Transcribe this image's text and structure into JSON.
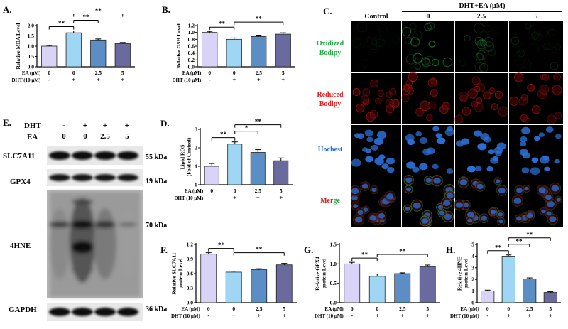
{
  "colors": {
    "bar_control": "#d9d4f7",
    "bar_dht": "#9fd6f3",
    "bar_ea25": "#5b8ec4",
    "bar_ea5": "#6b6a9e",
    "oxidized": "#22aa44",
    "reduced": "#e02020",
    "hoechst": "#2b6fd6",
    "merge_g": "#2a9a3a",
    "merge_r": "#d02020"
  },
  "conditions": {
    "ea_label": "EA (μM)",
    "dht_label": "DHT (10 μM)",
    "ea_values": [
      "0",
      "0",
      "2.5",
      "5"
    ],
    "dht_values": [
      "-",
      "+",
      "+",
      "+"
    ]
  },
  "charts": [
    {
      "id": "A",
      "letter": "A.",
      "ylabel": "Relative MDA Level",
      "yticks": [
        "0.0",
        "0.5",
        "1.0",
        "1.5",
        "2.0"
      ],
      "ylim": [
        0,
        2.0
      ],
      "values": [
        1.0,
        1.65,
        1.3,
        1.13
      ],
      "errors": [
        0.04,
        0.09,
        0.05,
        0.05
      ],
      "sig": [
        {
          "from": 0,
          "to": 1,
          "label": "**"
        },
        {
          "from": 1,
          "to": 2,
          "label": "**"
        },
        {
          "from": 1,
          "to": 3,
          "label": "**"
        }
      ]
    },
    {
      "id": "B",
      "letter": "B.",
      "ylabel": "Relative GSH Level",
      "yticks": [
        "0.0",
        "0.2",
        "0.4",
        "0.6",
        "0.8",
        "1.0",
        "1.2"
      ],
      "ylim": [
        0,
        1.2
      ],
      "values": [
        1.0,
        0.8,
        0.88,
        0.95
      ],
      "errors": [
        0.03,
        0.04,
        0.04,
        0.04
      ],
      "sig": [
        {
          "from": 0,
          "to": 1,
          "label": "**"
        },
        {
          "from": 1,
          "to": 3,
          "label": "**"
        }
      ]
    },
    {
      "id": "D",
      "letter": "D.",
      "ylabel": "Lipid ROS\n(Fold of Control)",
      "yticks": [
        "0",
        "1",
        "2",
        "3"
      ],
      "ylim": [
        0,
        3
      ],
      "values": [
        1.0,
        2.2,
        1.75,
        1.3
      ],
      "errors": [
        0.15,
        0.12,
        0.15,
        0.15
      ],
      "sig": [
        {
          "from": 0,
          "to": 1,
          "label": "**"
        },
        {
          "from": 1,
          "to": 2,
          "label": "*"
        },
        {
          "from": 1,
          "to": 3,
          "label": "**"
        }
      ]
    },
    {
      "id": "F",
      "letter": "F.",
      "ylabel": "Relative SLC7A11\nprotein Level",
      "yticks": [
        "0.0",
        "0.3",
        "0.6",
        "0.9",
        "1.2"
      ],
      "ylim": [
        0,
        1.2
      ],
      "values": [
        1.0,
        0.63,
        0.68,
        0.78
      ],
      "errors": [
        0.03,
        0.02,
        0.02,
        0.03
      ],
      "sig": [
        {
          "from": 0,
          "to": 1,
          "label": "**"
        },
        {
          "from": 1,
          "to": 3,
          "label": "**"
        }
      ]
    },
    {
      "id": "G",
      "letter": "G.",
      "ylabel": "Relative GPX4\nprotein Level",
      "yticks": [
        "0.0",
        "0.5",
        "1.0",
        "1.5"
      ],
      "ylim": [
        0,
        1.5
      ],
      "values": [
        1.0,
        0.68,
        0.75,
        0.93
      ],
      "errors": [
        0.04,
        0.06,
        0.02,
        0.04
      ],
      "sig": [
        {
          "from": 0,
          "to": 1,
          "label": "**"
        },
        {
          "from": 1,
          "to": 3,
          "label": "**"
        }
      ]
    },
    {
      "id": "H",
      "letter": "H.",
      "ylabel": "Relative 4HNE\nprotein Level",
      "yticks": [
        "0",
        "1",
        "2",
        "3",
        "4",
        "5"
      ],
      "ylim": [
        0,
        5
      ],
      "values": [
        1.0,
        4.0,
        2.05,
        0.88
      ],
      "errors": [
        0.08,
        0.1,
        0.08,
        0.06
      ],
      "sig": [
        {
          "from": 0,
          "to": 1,
          "label": "**"
        },
        {
          "from": 1,
          "to": 2,
          "label": "**"
        },
        {
          "from": 1,
          "to": 3,
          "label": "**"
        }
      ]
    }
  ],
  "chart_data": [
    {
      "type": "bar",
      "title": "",
      "ylabel": "Relative MDA Level",
      "categories": [
        "Control",
        "DHT",
        "DHT+EA 2.5",
        "DHT+EA 5"
      ],
      "values": [
        1.0,
        1.65,
        1.3,
        1.13
      ],
      "ylim": [
        0,
        2.0
      ]
    },
    {
      "type": "bar",
      "title": "",
      "ylabel": "Relative GSH Level",
      "categories": [
        "Control",
        "DHT",
        "DHT+EA 2.5",
        "DHT+EA 5"
      ],
      "values": [
        1.0,
        0.8,
        0.88,
        0.95
      ],
      "ylim": [
        0,
        1.2
      ]
    },
    {
      "type": "bar",
      "title": "",
      "ylabel": "Lipid ROS (Fold of Control)",
      "categories": [
        "Control",
        "DHT",
        "DHT+EA 2.5",
        "DHT+EA 5"
      ],
      "values": [
        1.0,
        2.2,
        1.75,
        1.3
      ],
      "ylim": [
        0,
        3
      ]
    },
    {
      "type": "bar",
      "title": "",
      "ylabel": "Relative SLC7A11 protein Level",
      "categories": [
        "Control",
        "DHT",
        "DHT+EA 2.5",
        "DHT+EA 5"
      ],
      "values": [
        1.0,
        0.63,
        0.68,
        0.78
      ],
      "ylim": [
        0,
        1.2
      ]
    },
    {
      "type": "bar",
      "title": "",
      "ylabel": "Relative GPX4 protein Level",
      "categories": [
        "Control",
        "DHT",
        "DHT+EA 2.5",
        "DHT+EA 5"
      ],
      "values": [
        1.0,
        0.68,
        0.75,
        0.93
      ],
      "ylim": [
        0,
        1.5
      ]
    },
    {
      "type": "bar",
      "title": "",
      "ylabel": "Relative 4HNE protein Level",
      "categories": [
        "Control",
        "DHT",
        "DHT+EA 2.5",
        "DHT+EA 5"
      ],
      "values": [
        1.0,
        4.0,
        2.05,
        0.88
      ],
      "ylim": [
        0,
        5
      ]
    }
  ],
  "panel_c": {
    "letter": "C.",
    "header_group": "DHT+EA (μM)",
    "col_labels": [
      "Control",
      "0",
      "2.5",
      "5"
    ],
    "row_labels": [
      {
        "line1": "Oxidized",
        "line2": "Bodipy",
        "color": "#22aa44"
      },
      {
        "line1": "Reduced",
        "line2": "Bodipy",
        "color": "#e02020"
      },
      {
        "line1": "Hochest",
        "line2": "",
        "color": "#2b6fd6"
      },
      {
        "line1": "Merge",
        "line2": "",
        "color": "multi"
      }
    ]
  },
  "panel_e": {
    "letter": "E.",
    "dht_label": "DHT",
    "ea_label": "EA",
    "dht_values": [
      "-",
      "+",
      "+",
      "+"
    ],
    "ea_values": [
      "0",
      "0",
      "2.5",
      "5"
    ],
    "blots": [
      {
        "name": "SLC7A11",
        "kda": "55 kDa"
      },
      {
        "name": "GPX4",
        "kda": "19 kDa"
      },
      {
        "name": "4HNE",
        "kda": "70 kDa"
      },
      {
        "name": "GAPDH",
        "kda": "36 kDa"
      }
    ]
  }
}
